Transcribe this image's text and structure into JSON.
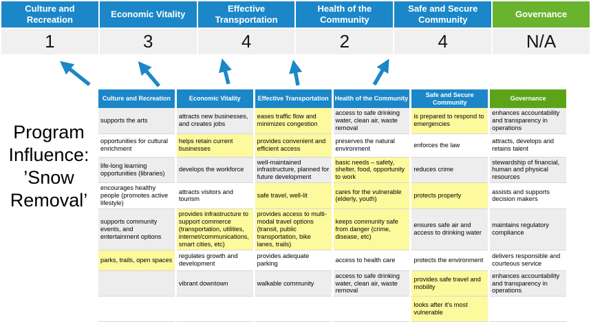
{
  "colors": {
    "blue": "#1b87c8",
    "green_bright": "#69b32e",
    "green": "#5ca417",
    "highlight": "#fdf99d",
    "band": "#ededed",
    "score_bg": "#f0f0f0"
  },
  "program_label": {
    "lines": [
      "Program",
      "Influence:",
      "’Snow",
      "Removal’"
    ],
    "full_text": "Program Influence: ’Snow Removal’"
  },
  "banner": {
    "pillars": [
      {
        "label": "Culture and Recreation",
        "score": "1"
      },
      {
        "label": "Economic Vitality",
        "score": "3"
      },
      {
        "label": "Effective Transportation",
        "score": "4"
      },
      {
        "label": "Health of the Community",
        "score": "2"
      },
      {
        "label": "Safe and Secure Community",
        "score": "4"
      },
      {
        "label": "Governance",
        "score": "N/A"
      }
    ]
  },
  "matrix": {
    "headers": [
      "Culture and Recreation",
      "Economic Vitality",
      "Effective Transportation",
      "Health of the Community",
      "Safe and Secure Community",
      "Governance"
    ],
    "rows": [
      {
        "cells": [
          {
            "text": "supports the arts",
            "highlight": false
          },
          {
            "text": "attracts new businesses, and creates jobs",
            "highlight": false
          },
          {
            "text": "eases traffic flow and minimizes congestion",
            "highlight": true
          },
          {
            "text": "access to safe drinking water, clean air, waste removal",
            "highlight": false
          },
          {
            "text": "is prepared to respond to emergencies",
            "highlight": true
          },
          {
            "text": "enhances accountability and transparency in operations",
            "highlight": false
          }
        ]
      },
      {
        "cells": [
          {
            "text": "opportunities for cultural enrichment",
            "highlight": false
          },
          {
            "text": "helps retain current businesses",
            "highlight": true
          },
          {
            "text": "provides convenient and efficient access",
            "highlight": true
          },
          {
            "text": "preserves the natural environment",
            "highlight": false
          },
          {
            "text": "enforces the law",
            "highlight": false
          },
          {
            "text": "attracts, develops and retains talent",
            "highlight": false
          }
        ]
      },
      {
        "cells": [
          {
            "text": "life-long learning opportunities (libraries)",
            "highlight": false
          },
          {
            "text": "develops the workforce",
            "highlight": false
          },
          {
            "text": "well-maintained infrastructure, planned for future development",
            "highlight": false
          },
          {
            "text": "basic needs – safety, shelter, food, opportunity to work",
            "highlight": true
          },
          {
            "text": "reduces crime",
            "highlight": false
          },
          {
            "text": "stewardship of financial, human and physical resources",
            "highlight": false
          }
        ]
      },
      {
        "cells": [
          {
            "text": "encourages healthy people (promotes active lifestyle)",
            "highlight": false
          },
          {
            "text": "attracts visitors and tourism",
            "highlight": false
          },
          {
            "text": "safe travel, well-lit",
            "highlight": true
          },
          {
            "text": "cares for the vulnerable (elderly, youth)",
            "highlight": true
          },
          {
            "text": "protects property",
            "highlight": true
          },
          {
            "text": "assists and supports decision makers",
            "highlight": false
          }
        ]
      },
      {
        "cells": [
          {
            "text": "supports community events, and entertainment options",
            "highlight": false
          },
          {
            "text": "provides infrastructure to support commerce (transportation, utilities, internet/communications, smart cities, etc)",
            "highlight": true
          },
          {
            "text": "provides access to multi-modal travel options (transit, public transportation, bike lanes, trails)",
            "highlight": true
          },
          {
            "text": "keeps community safe from danger (crime, disease, etc)",
            "highlight": true
          },
          {
            "text": "ensures safe air and access to drinking water",
            "highlight": false
          },
          {
            "text": "maintains regulatory compliance",
            "highlight": false
          }
        ]
      },
      {
        "cells": [
          {
            "text": "parks, trails, open spaces",
            "highlight": true
          },
          {
            "text": "regulates growth and development",
            "highlight": false
          },
          {
            "text": "provides adequate parking",
            "highlight": false
          },
          {
            "text": "access to health care",
            "highlight": false
          },
          {
            "text": "protects the environment",
            "highlight": false
          },
          {
            "text": "delivers responsible and courteous service",
            "highlight": false
          }
        ]
      },
      {
        "cells": [
          {
            "text": "",
            "highlight": false
          },
          {
            "text": "vibrant downtown",
            "highlight": false
          },
          {
            "text": "walkable community",
            "highlight": false
          },
          {
            "text": "access to safe drinking water, clean air, waste removal",
            "highlight": false
          },
          {
            "text": "provides safe travel and mobility",
            "highlight": true
          },
          {
            "text": "enhances accountability and transparency in operations",
            "highlight": false
          }
        ]
      },
      {
        "cells": [
          {
            "text": "",
            "highlight": false
          },
          {
            "text": "",
            "highlight": false
          },
          {
            "text": "",
            "highlight": false
          },
          {
            "text": "",
            "highlight": false
          },
          {
            "text": "looks after it's most vulnerable",
            "highlight": true
          },
          {
            "text": "",
            "highlight": false
          }
        ]
      }
    ]
  }
}
